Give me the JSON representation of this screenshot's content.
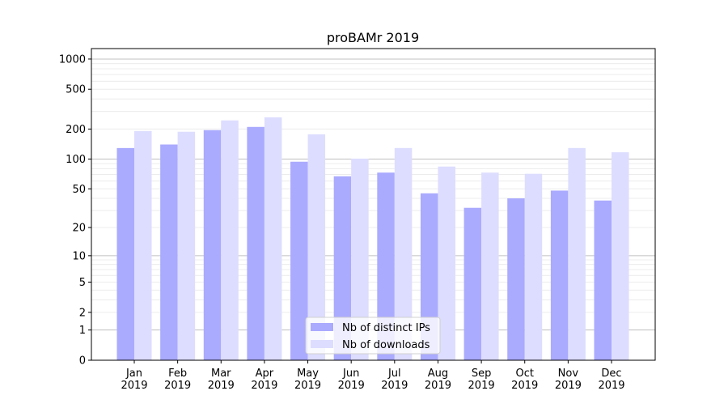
{
  "chart_data": {
    "type": "bar",
    "title": "proBAMr 2019",
    "xlabel": "",
    "ylabel": "",
    "y_scale": "log(1+x)",
    "ylim": [
      0,
      1300
    ],
    "grid": "horizontal",
    "legend_placement": "bottom-center",
    "categories": [
      "Jan\n2019",
      "Feb\n2019",
      "Mar\n2019",
      "Apr\n2019",
      "May\n2019",
      "Jun\n2019",
      "Jul\n2019",
      "Aug\n2019",
      "Sep\n2019",
      "Oct\n2019",
      "Nov\n2019",
      "Dec\n2019"
    ],
    "y_ticks": [
      0,
      1,
      2,
      5,
      10,
      20,
      50,
      100,
      200,
      500,
      1000
    ],
    "series": [
      {
        "name": "Nb of distinct IPs",
        "color": "#aaaaff",
        "values": [
          129,
          140,
          195,
          210,
          94,
          67,
          73,
          45,
          32,
          40,
          48,
          38
        ]
      },
      {
        "name": "Nb of downloads",
        "color": "#ddddff",
        "values": [
          191,
          188,
          244,
          262,
          177,
          101,
          129,
          84,
          73,
          71,
          129,
          117
        ]
      }
    ]
  }
}
